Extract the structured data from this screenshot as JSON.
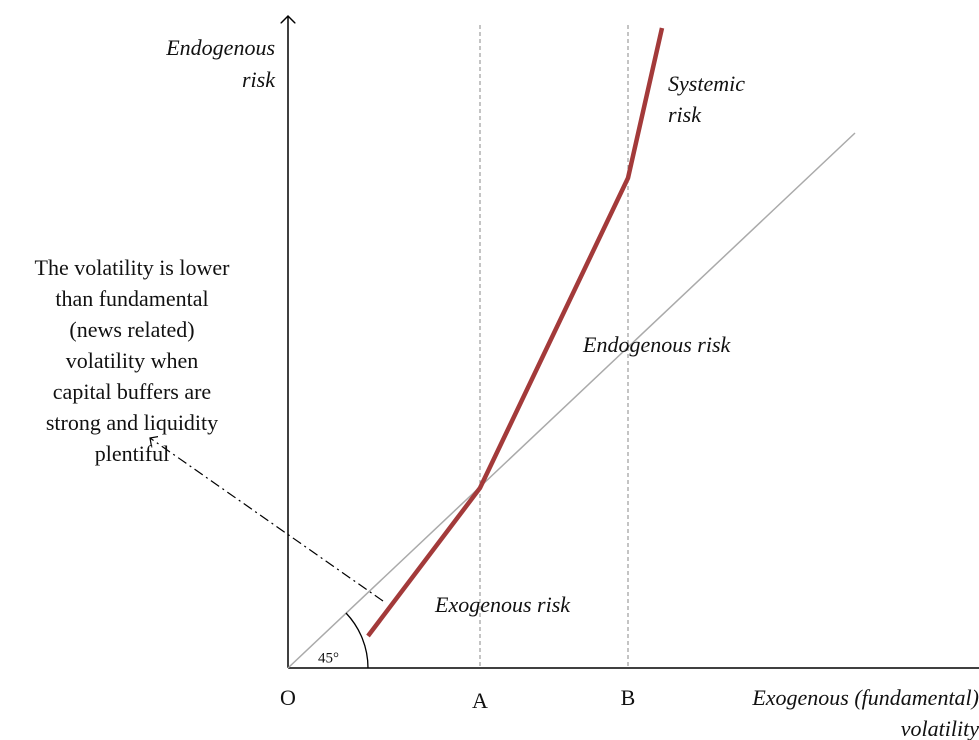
{
  "axes": {
    "y_label": [
      "Endogenous",
      "risk"
    ],
    "x_label": [
      "Exogenous (fundamental)",
      "volatility"
    ],
    "origin": "O",
    "point_a": "A",
    "point_b": "B",
    "angle": "45°"
  },
  "regions": {
    "systemic": [
      "Systemic",
      "risk"
    ],
    "endogenous": "Endogenous risk",
    "exogenous": "Exogenous risk"
  },
  "annotation": [
    "The volatility is lower",
    "than fundamental",
    "(news related)",
    "volatility when",
    "capital buffers are",
    "strong and liquidity",
    "plentiful"
  ]
}
